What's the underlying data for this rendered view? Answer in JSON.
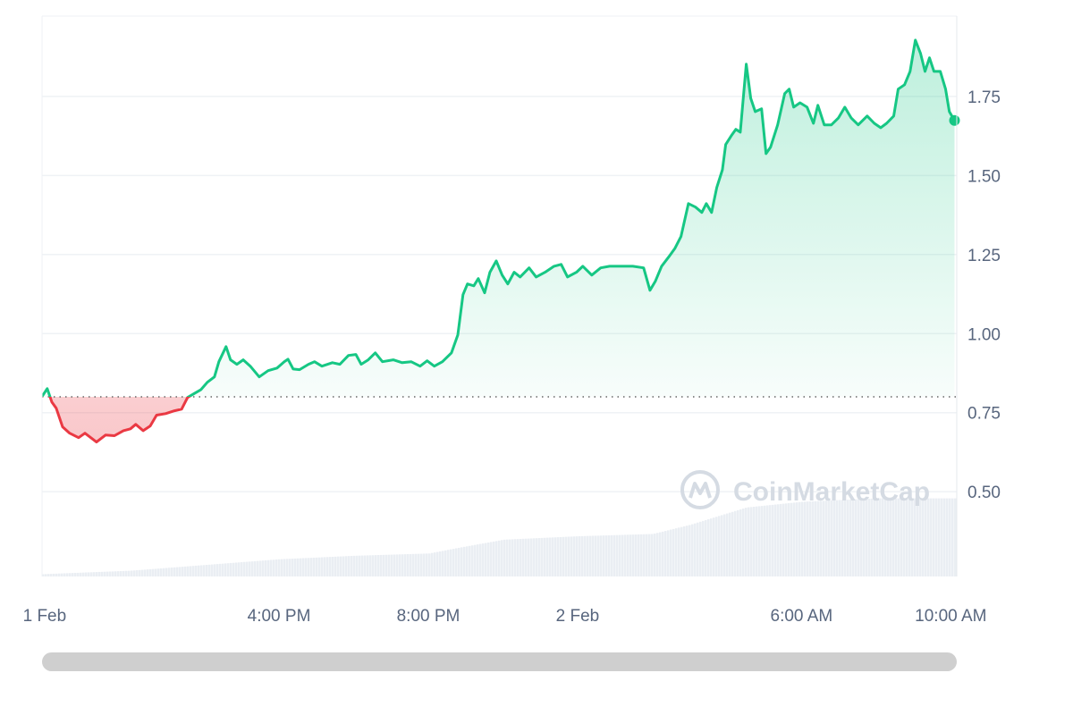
{
  "chart_data": {
    "type": "line",
    "title": "",
    "xlabel": "",
    "ylabel": "",
    "xlim_hours": [
      9.65,
      34.16
    ],
    "ylim": [
      0.232,
      2.004
    ],
    "baseline": 0.8,
    "grid": true,
    "y_ticks": [
      {
        "value": 0.5,
        "label": "0.50"
      },
      {
        "value": 0.75,
        "label": "0.75"
      },
      {
        "value": 1.0,
        "label": "1.00"
      },
      {
        "value": 1.25,
        "label": "1.25"
      },
      {
        "value": 1.5,
        "label": "1.50"
      },
      {
        "value": 1.75,
        "label": "1.75"
      }
    ],
    "x_ticks": [
      {
        "hour": 9.72,
        "label": "1 Feb"
      },
      {
        "hour": 16,
        "label": "4:00 PM"
      },
      {
        "hour": 20,
        "label": "8:00 PM"
      },
      {
        "hour": 24,
        "label": "2 Feb"
      },
      {
        "hour": 30,
        "label": "6:00 AM"
      },
      {
        "hour": 34,
        "label": "10:00 AM"
      }
    ],
    "colors": {
      "up": "#16c784",
      "down": "#ea3943",
      "grid": "#eff2f5",
      "volume": "#eaeef3",
      "baseline": "#7a7a7a"
    },
    "watermark": "CoinMarketCap",
    "series": [
      {
        "name": "price",
        "x": [
          9.65,
          9.79,
          9.91,
          10.03,
          10.2,
          10.39,
          10.63,
          10.8,
          11.11,
          11.35,
          11.59,
          11.83,
          12.02,
          12.16,
          12.36,
          12.55,
          12.72,
          12.96,
          13.2,
          13.39,
          13.55,
          13.75,
          13.91,
          14.08,
          14.27,
          14.39,
          14.58,
          14.7,
          14.87,
          15.04,
          15.23,
          15.47,
          15.71,
          15.95,
          16.14,
          16.24,
          16.38,
          16.55,
          16.79,
          16.95,
          17.15,
          17.43,
          17.63,
          17.86,
          18.06,
          18.2,
          18.39,
          18.58,
          18.77,
          19.06,
          19.3,
          19.54,
          19.78,
          19.97,
          20.16,
          20.38,
          20.62,
          20.79,
          20.93,
          21.05,
          21.22,
          21.34,
          21.51,
          21.65,
          21.82,
          21.98,
          22.13,
          22.3,
          22.46,
          22.7,
          22.89,
          23.13,
          23.37,
          23.56,
          23.73,
          23.97,
          24.14,
          24.38,
          24.62,
          24.86,
          25.17,
          25.48,
          25.77,
          25.94,
          26.08,
          26.25,
          26.44,
          26.61,
          26.77,
          26.97,
          27.16,
          27.33,
          27.45,
          27.59,
          27.73,
          27.88,
          27.97,
          28.12,
          28.24,
          28.36,
          28.52,
          28.64,
          28.76,
          28.93,
          29.05,
          29.17,
          29.36,
          29.55,
          29.67,
          29.79,
          29.96,
          30.15,
          30.32,
          30.44,
          30.61,
          30.8,
          30.99,
          31.16,
          31.33,
          31.52,
          31.76,
          31.95,
          32.12,
          32.28,
          32.47,
          32.59,
          32.76,
          32.91,
          33.05,
          33.19,
          33.31,
          33.43,
          33.55,
          33.72,
          33.86,
          33.96,
          34.1
        ],
        "values": [
          0.801,
          0.826,
          0.784,
          0.764,
          0.705,
          0.685,
          0.671,
          0.685,
          0.657,
          0.679,
          0.677,
          0.693,
          0.699,
          0.713,
          0.693,
          0.708,
          0.742,
          0.747,
          0.756,
          0.761,
          0.798,
          0.812,
          0.823,
          0.846,
          0.863,
          0.911,
          0.959,
          0.917,
          0.903,
          0.917,
          0.897,
          0.863,
          0.883,
          0.891,
          0.911,
          0.919,
          0.888,
          0.886,
          0.903,
          0.911,
          0.897,
          0.908,
          0.903,
          0.931,
          0.934,
          0.903,
          0.917,
          0.939,
          0.911,
          0.917,
          0.908,
          0.911,
          0.897,
          0.914,
          0.897,
          0.911,
          0.939,
          0.996,
          1.123,
          1.157,
          1.151,
          1.174,
          1.129,
          1.194,
          1.23,
          1.185,
          1.157,
          1.194,
          1.179,
          1.208,
          1.179,
          1.194,
          1.213,
          1.219,
          1.179,
          1.194,
          1.213,
          1.185,
          1.208,
          1.213,
          1.213,
          1.213,
          1.208,
          1.137,
          1.165,
          1.213,
          1.242,
          1.27,
          1.307,
          1.411,
          1.4,
          1.383,
          1.411,
          1.383,
          1.462,
          1.518,
          1.598,
          1.626,
          1.646,
          1.637,
          1.852,
          1.744,
          1.702,
          1.711,
          1.569,
          1.589,
          1.66,
          1.759,
          1.773,
          1.716,
          1.73,
          1.716,
          1.665,
          1.722,
          1.66,
          1.66,
          1.682,
          1.716,
          1.682,
          1.66,
          1.688,
          1.665,
          1.651,
          1.665,
          1.688,
          1.773,
          1.787,
          1.829,
          1.928,
          1.886,
          1.829,
          1.872,
          1.829,
          1.829,
          1.773,
          1.702,
          1.674
        ]
      },
      {
        "name": "volume",
        "x": [
          9.65,
          12,
          14,
          16,
          18,
          20,
          20.8,
          22,
          24,
          26,
          27,
          28.5,
          30,
          32,
          34.16
        ],
        "values": [
          2,
          5,
          10,
          15,
          18,
          20,
          25,
          32,
          35,
          37,
          45,
          60,
          65,
          68,
          68
        ]
      }
    ]
  },
  "scrollbar": {
    "label": "time-range scrollbar"
  }
}
